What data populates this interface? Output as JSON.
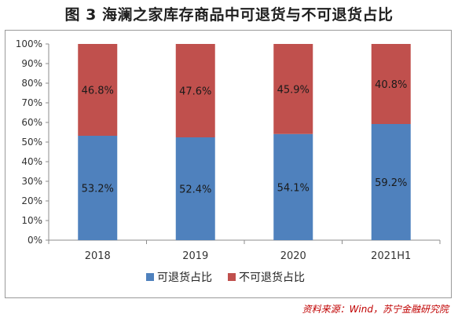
{
  "title": "图 3 海澜之家库存商品中可退货与不可退货占比",
  "source": "资料来源：Wind，苏宁金融研究院",
  "chart_data": {
    "type": "bar",
    "stacked": true,
    "percent": true,
    "categories": [
      "2018",
      "2019",
      "2020",
      "2021H1"
    ],
    "series": [
      {
        "name": "可退货占比",
        "color": "#4f81bd",
        "values": [
          53.2,
          52.4,
          54.1,
          59.2
        ],
        "labels": [
          "53.2%",
          "52.4%",
          "54.1%",
          "59.2%"
        ]
      },
      {
        "name": "不可退货占比",
        "color": "#c0504d",
        "values": [
          46.8,
          47.6,
          45.9,
          40.8
        ],
        "labels": [
          "46.8%",
          "47.6%",
          "45.9%",
          "40.8%"
        ]
      }
    ],
    "ylim": [
      0,
      100
    ],
    "yticks": [
      "0%",
      "10%",
      "20%",
      "30%",
      "40%",
      "50%",
      "60%",
      "70%",
      "80%",
      "90%",
      "100%"
    ],
    "grid": false,
    "legend": "bottom"
  }
}
